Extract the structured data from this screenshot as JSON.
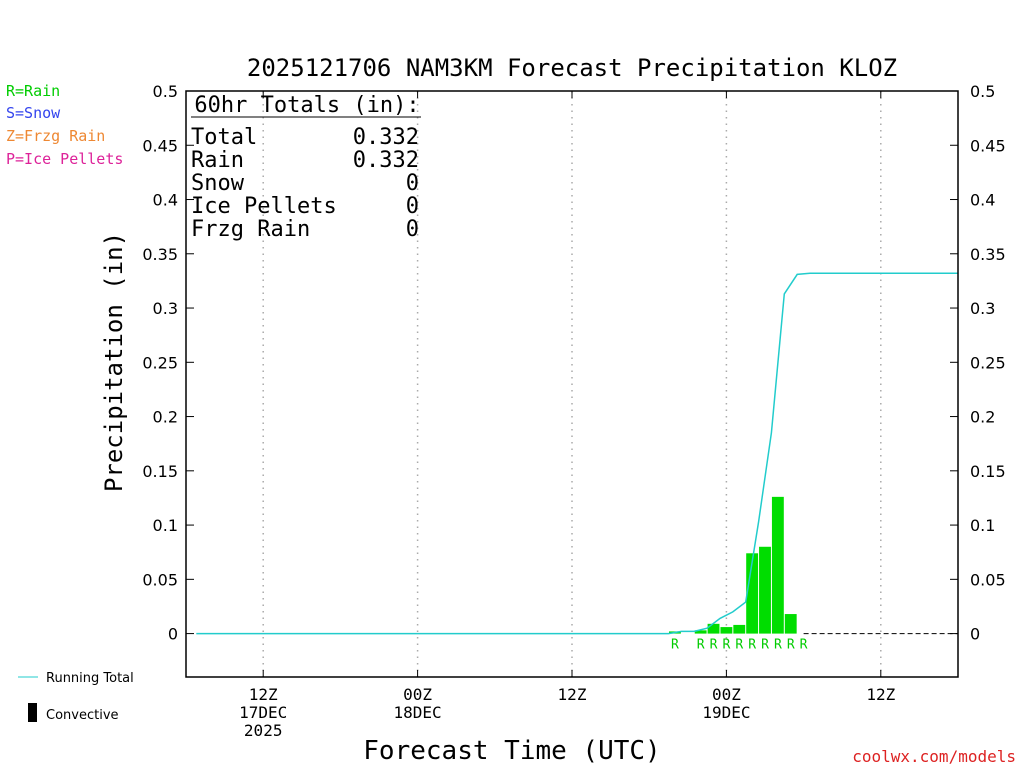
{
  "legend": {
    "rain": {
      "label": "R=Rain",
      "color": "#00cc00"
    },
    "snow": {
      "label": "S=Snow",
      "color": "#3344ee"
    },
    "frzg": {
      "label": "Z=Frzg Rain",
      "color": "#ee8833"
    },
    "ice": {
      "label": "P=Ice Pellets",
      "color": "#dd2299"
    }
  },
  "bottom_legend": {
    "running_total": "Running Total",
    "convective": "Convective"
  },
  "credit": "coolwx.com/models",
  "totals_box": {
    "header": "60hr Totals (in):",
    "rows": [
      {
        "label": "Total",
        "value": "0.332"
      },
      {
        "label": "Rain",
        "value": "0.332"
      },
      {
        "label": "Snow",
        "value": "0"
      },
      {
        "label": "Ice Pellets",
        "value": "0"
      },
      {
        "label": "Frzg Rain",
        "value": "0"
      }
    ]
  },
  "chart_data": {
    "type": "bar",
    "title": "2025121706 NAM3KM Forecast Precipitation KLOZ",
    "xlabel": "Forecast Time (UTC)",
    "ylabel": "Precipitation (in)",
    "ylim": [
      -0.04,
      0.5
    ],
    "yticks": [
      0,
      0.05,
      0.1,
      0.15,
      0.2,
      0.25,
      0.3,
      0.35,
      0.4,
      0.45,
      0.5
    ],
    "ytick_labels": [
      "0",
      "0.05",
      "0.1",
      "0.15",
      "0.2",
      "0.25",
      "0.3",
      "0.35",
      "0.4",
      "0.45",
      "0.5"
    ],
    "xlim_hours": [
      0,
      60
    ],
    "x_ticks": [
      {
        "hour": 6,
        "lines": [
          "12Z",
          "17DEC",
          "2025"
        ]
      },
      {
        "hour": 18,
        "lines": [
          "00Z",
          "18DEC"
        ]
      },
      {
        "hour": 30,
        "lines": [
          "12Z"
        ]
      },
      {
        "hour": 42,
        "lines": [
          "00Z",
          "19DEC"
        ]
      },
      {
        "hour": 54,
        "lines": [
          "12Z"
        ]
      }
    ],
    "grid": "vertical dotted",
    "bar_color": "#00dd00",
    "line_color": "#22cccc",
    "bars": [
      {
        "hour": 38,
        "value": 0.002
      },
      {
        "hour": 39,
        "value": 0.0
      },
      {
        "hour": 40,
        "value": 0.003
      },
      {
        "hour": 41,
        "value": 0.009
      },
      {
        "hour": 42,
        "value": 0.006
      },
      {
        "hour": 43,
        "value": 0.008
      },
      {
        "hour": 44,
        "value": 0.074
      },
      {
        "hour": 45,
        "value": 0.08
      },
      {
        "hour": 46,
        "value": 0.126
      },
      {
        "hour": 47,
        "value": 0.018
      }
    ],
    "type_labels": [
      {
        "hour": 38,
        "label": "R"
      },
      {
        "hour": 40,
        "label": "R"
      },
      {
        "hour": 41,
        "label": "R"
      },
      {
        "hour": 42,
        "label": "R"
      },
      {
        "hour": 43,
        "label": "R"
      },
      {
        "hour": 44,
        "label": "R"
      },
      {
        "hour": 45,
        "label": "R"
      },
      {
        "hour": 46,
        "label": "R"
      },
      {
        "hour": 47,
        "label": "R"
      },
      {
        "hour": 48,
        "label": "R"
      }
    ],
    "running_total": [
      {
        "hour": 0.8,
        "value": 0.0
      },
      {
        "hour": 37.5,
        "value": 0.0
      },
      {
        "hour": 38.5,
        "value": 0.002
      },
      {
        "hour": 39.5,
        "value": 0.002
      },
      {
        "hour": 40.5,
        "value": 0.005
      },
      {
        "hour": 41.5,
        "value": 0.014
      },
      {
        "hour": 42.5,
        "value": 0.02
      },
      {
        "hour": 43.5,
        "value": 0.029
      },
      {
        "hour": 44.5,
        "value": 0.103
      },
      {
        "hour": 45.5,
        "value": 0.185
      },
      {
        "hour": 46.5,
        "value": 0.313
      },
      {
        "hour": 47.5,
        "value": 0.331
      },
      {
        "hour": 48.5,
        "value": 0.332
      },
      {
        "hour": 60,
        "value": 0.332
      }
    ],
    "dashed_zero_from_hour": 48
  }
}
